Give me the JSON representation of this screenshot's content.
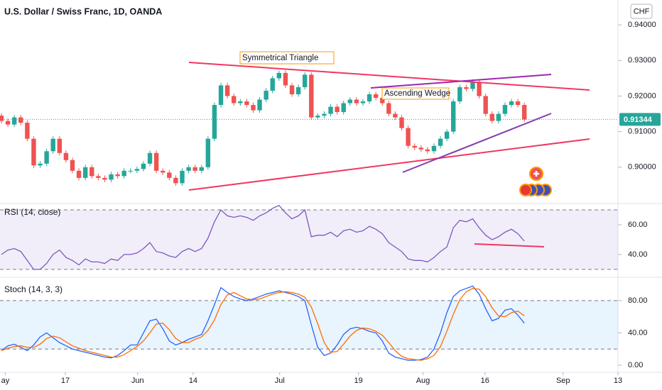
{
  "chart_data": [
    {
      "type": "candlestick",
      "title": "U.S. Dollar / Swiss Franc, 1D, OANDA",
      "currency": "CHF",
      "annotations": [
        "Symmetrical Triangle",
        "Ascending Wedge"
      ],
      "last_price": 0.91344,
      "up_color": "#26a69a",
      "down_color": "#ef5350",
      "xlim": [
        -0.22,
        95.5
      ],
      "ylim": [
        0.8902,
        0.9466
      ],
      "yticks": [
        {
          "value": 0.94,
          "label": "0.94000"
        },
        {
          "value": 0.93,
          "label": "0.93000"
        },
        {
          "value": 0.92,
          "label": "0.92000"
        },
        {
          "value": 0.91,
          "label": "0.91000"
        },
        {
          "value": 0.9,
          "label": "0.90000"
        }
      ],
      "open": [
        0.9145,
        0.913,
        0.912,
        0.914,
        0.9125,
        0.908,
        0.9005,
        0.901,
        0.9045,
        0.908,
        0.904,
        0.902,
        0.899,
        0.897,
        0.9,
        0.8975,
        0.897,
        0.8965,
        0.898,
        0.8975,
        0.899,
        0.899,
        0.8995,
        0.901,
        0.904,
        0.899,
        0.8985,
        0.897,
        0.8955,
        0.899,
        0.9,
        0.899,
        0.9,
        0.908,
        0.9175,
        0.923,
        0.92,
        0.918,
        0.9185,
        0.9175,
        0.916,
        0.919,
        0.9215,
        0.925,
        0.9265,
        0.923,
        0.9205,
        0.9225,
        0.926,
        0.914,
        0.9145,
        0.915,
        0.917,
        0.9155,
        0.918,
        0.919,
        0.918,
        0.9185,
        0.9205,
        0.9195,
        0.918,
        0.915,
        0.914,
        0.911,
        0.906,
        0.9055,
        0.905,
        0.9045,
        0.906,
        0.908,
        0.91,
        0.9185,
        0.9225,
        0.922,
        0.924,
        0.92,
        0.915,
        0.913,
        0.915,
        0.9175,
        0.9185,
        0.9175
      ],
      "high": [
        0.9152,
        0.9137,
        0.9147,
        0.9147,
        0.9132,
        0.9087,
        0.9017,
        0.9052,
        0.9087,
        0.9087,
        0.9047,
        0.9027,
        0.8997,
        0.9007,
        0.9007,
        0.8982,
        0.8977,
        0.8987,
        0.8987,
        0.8997,
        0.8997,
        0.9002,
        0.9017,
        0.9047,
        0.9047,
        0.8997,
        0.8992,
        0.8977,
        0.8997,
        0.9007,
        0.9007,
        0.9007,
        0.9087,
        0.9182,
        0.9237,
        0.9237,
        0.9207,
        0.9192,
        0.9192,
        0.9182,
        0.9197,
        0.9222,
        0.9257,
        0.9272,
        0.9272,
        0.9237,
        0.9232,
        0.9267,
        0.9267,
        0.9152,
        0.9157,
        0.9177,
        0.9177,
        0.9187,
        0.9197,
        0.9197,
        0.9192,
        0.9212,
        0.9212,
        0.9202,
        0.9187,
        0.9157,
        0.9147,
        0.9117,
        0.9067,
        0.9062,
        0.9057,
        0.9067,
        0.9087,
        0.9107,
        0.9192,
        0.9232,
        0.9232,
        0.9247,
        0.9247,
        0.9207,
        0.9157,
        0.9157,
        0.9182,
        0.9192,
        0.9192,
        0.9182
      ],
      "low": [
        0.9123,
        0.9113,
        0.9113,
        0.9118,
        0.9073,
        0.8998,
        0.8998,
        0.9003,
        0.9038,
        0.9033,
        0.9013,
        0.8983,
        0.8963,
        0.8963,
        0.8968,
        0.8963,
        0.8958,
        0.8958,
        0.8968,
        0.8968,
        0.8983,
        0.8983,
        0.8988,
        0.9003,
        0.8983,
        0.8978,
        0.8963,
        0.8948,
        0.8948,
        0.8983,
        0.8983,
        0.8983,
        0.8993,
        0.9073,
        0.9168,
        0.9193,
        0.9173,
        0.9173,
        0.9168,
        0.9153,
        0.9153,
        0.9183,
        0.9208,
        0.9243,
        0.9223,
        0.9198,
        0.9198,
        0.9218,
        0.9133,
        0.9133,
        0.9138,
        0.9143,
        0.9148,
        0.9148,
        0.9173,
        0.9173,
        0.9173,
        0.9178,
        0.9188,
        0.9173,
        0.9143,
        0.9133,
        0.9103,
        0.9053,
        0.9048,
        0.9043,
        0.9038,
        0.9038,
        0.9053,
        0.9073,
        0.9093,
        0.9178,
        0.9213,
        0.9213,
        0.9193,
        0.9143,
        0.9123,
        0.9123,
        0.9143,
        0.9168,
        0.9168,
        0.9127
      ],
      "close": [
        0.913,
        0.912,
        0.914,
        0.9125,
        0.908,
        0.9005,
        0.901,
        0.9045,
        0.908,
        0.904,
        0.902,
        0.899,
        0.897,
        0.9,
        0.8975,
        0.897,
        0.8965,
        0.898,
        0.8975,
        0.899,
        0.899,
        0.8995,
        0.901,
        0.904,
        0.899,
        0.8985,
        0.897,
        0.8955,
        0.899,
        0.9,
        0.899,
        0.9,
        0.908,
        0.9175,
        0.923,
        0.92,
        0.918,
        0.9185,
        0.9175,
        0.916,
        0.919,
        0.9215,
        0.925,
        0.9265,
        0.923,
        0.9205,
        0.9225,
        0.926,
        0.914,
        0.9145,
        0.915,
        0.917,
        0.9155,
        0.918,
        0.919,
        0.918,
        0.9185,
        0.9205,
        0.9195,
        0.918,
        0.915,
        0.914,
        0.911,
        0.906,
        0.9055,
        0.905,
        0.9045,
        0.906,
        0.908,
        0.91,
        0.9185,
        0.9225,
        0.922,
        0.924,
        0.92,
        0.915,
        0.913,
        0.915,
        0.9175,
        0.9185,
        0.9175,
        0.9134
      ]
    },
    {
      "type": "line",
      "title": "RSI (14, close)",
      "xlim": [
        -0.22,
        95.5
      ],
      "ylim": [
        25.2,
        73.8
      ],
      "yticks": [
        {
          "value": 60,
          "label": "60.00"
        },
        {
          "value": 40,
          "label": "40.00"
        }
      ],
      "bands": [
        70,
        30
      ],
      "band_fill": "rgba(126,87,194,0.1)",
      "series": [
        {
          "color": "#7e57c2",
          "values": [
            40,
            43,
            44,
            42,
            36,
            30,
            30,
            34,
            40,
            43,
            38,
            36,
            33,
            37,
            35,
            35,
            34,
            37,
            36,
            40,
            40,
            41,
            44,
            48,
            42,
            41,
            39,
            38,
            42,
            44,
            42,
            44,
            51,
            62,
            70,
            66,
            65,
            66,
            65,
            63,
            66,
            68,
            71,
            73,
            68,
            64,
            66,
            70,
            52,
            53,
            53,
            55,
            52,
            56,
            57,
            55,
            56,
            59,
            57,
            54,
            48,
            45,
            42,
            37,
            36,
            36,
            35,
            38,
            42,
            45,
            58,
            63,
            62,
            64,
            58,
            53,
            50,
            52,
            55,
            57,
            54,
            49
          ]
        }
      ]
    },
    {
      "type": "line",
      "title": "Stoch (14, 3, 3)",
      "xlim": [
        -0.22,
        95.5
      ],
      "ylim": [
        -8.8,
        108
      ],
      "yticks": [
        {
          "value": 80,
          "label": "80.00"
        },
        {
          "value": 40,
          "label": "40.00"
        },
        {
          "value": 0,
          "label": "0.00"
        }
      ],
      "bands": [
        80,
        20
      ],
      "band_fill": "rgba(33,150,243,0.1)",
      "xticks": [
        {
          "value": 0.6,
          "label": "ay"
        },
        {
          "value": 9.9,
          "label": "17"
        },
        {
          "value": 21.1,
          "label": "Jun"
        },
        {
          "value": 29.7,
          "label": "14"
        },
        {
          "value": 43.1,
          "label": "Jul"
        },
        {
          "value": 55.3,
          "label": "19"
        },
        {
          "value": 65.3,
          "label": "Aug"
        },
        {
          "value": 74.9,
          "label": "16"
        },
        {
          "value": 87,
          "label": "Sep"
        },
        {
          "value": 95.5,
          "label": "13"
        }
      ],
      "series": [
        {
          "color": "#2962ff",
          "values": [
            18,
            24,
            26,
            22,
            18,
            25,
            35,
            40,
            34,
            28,
            24,
            20,
            18,
            16,
            14,
            12,
            10,
            9,
            12,
            18,
            25,
            25,
            40,
            55,
            57,
            45,
            30,
            25,
            28,
            32,
            35,
            38,
            55,
            75,
            96,
            90,
            85,
            82,
            80,
            82,
            85,
            88,
            90,
            92,
            90,
            88,
            85,
            80,
            50,
            22,
            12,
            15,
            25,
            38,
            45,
            47,
            45,
            42,
            40,
            30,
            15,
            10,
            8,
            6,
            6,
            7,
            10,
            20,
            40,
            65,
            85,
            92,
            95,
            98,
            88,
            70,
            55,
            58,
            68,
            70,
            62,
            52
          ]
        },
        {
          "color": "#ff6d00",
          "values": [
            18,
            21,
            23,
            24,
            22,
            22,
            26,
            33,
            36,
            34,
            29,
            24,
            21,
            18,
            16,
            14,
            12,
            10,
            10,
            13,
            18,
            23,
            30,
            40,
            51,
            52,
            44,
            33,
            28,
            28,
            32,
            35,
            43,
            56,
            75,
            87,
            90,
            86,
            82,
            81,
            82,
            85,
            88,
            90,
            91,
            90,
            88,
            84,
            72,
            51,
            28,
            16,
            17,
            26,
            36,
            43,
            46,
            45,
            42,
            37,
            28,
            18,
            11,
            8,
            7,
            6,
            8,
            12,
            23,
            42,
            63,
            81,
            91,
            95,
            94,
            85,
            71,
            61,
            60,
            65,
            67,
            61
          ]
        }
      ]
    }
  ]
}
